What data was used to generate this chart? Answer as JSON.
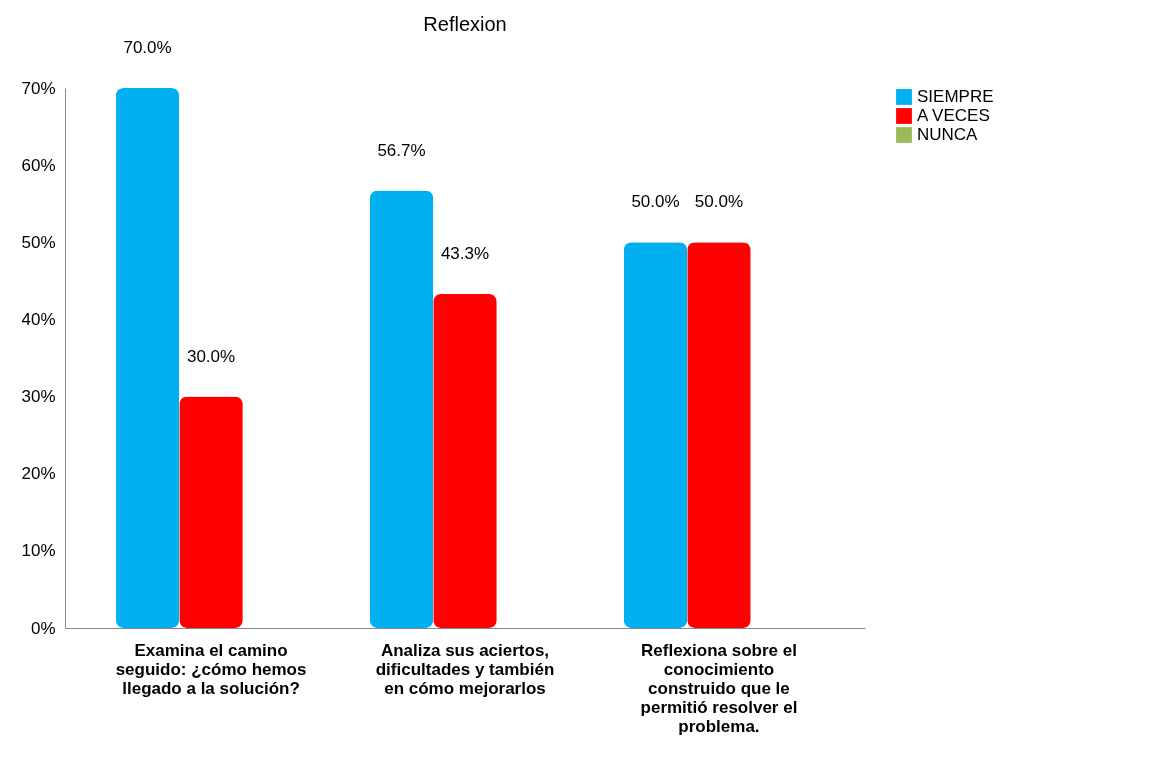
{
  "chart_data": {
    "type": "bar",
    "title": "Reflexion",
    "categories": [
      "Examina el camino seguido: ¿cómo hemos llegado a la solución?",
      "Analiza sus aciertos, dificultades y también en cómo mejorarlos",
      "Reflexiona sobre el conocimiento construido que le permitió resolver el problema."
    ],
    "series": [
      {
        "name": "SIEMPRE",
        "color": "#00b0f0",
        "values": [
          70.0,
          56.7,
          50.0
        ],
        "value_labels": [
          "70.0%",
          "56.7%",
          "50.0%"
        ]
      },
      {
        "name": "A VECES",
        "color": "#ff0000",
        "values": [
          30.0,
          43.3,
          50.0
        ],
        "value_labels": [
          "30.0%",
          "43.3%",
          "50.0%"
        ]
      },
      {
        "name": "NUNCA",
        "color": "#9bbb59",
        "values": [
          0,
          0,
          0
        ],
        "value_labels": [
          null,
          null,
          null
        ]
      }
    ],
    "ylim": [
      0,
      70
    ],
    "yticks": [
      {
        "value": 0,
        "label": "0%"
      },
      {
        "value": 10,
        "label": "10%"
      },
      {
        "value": 20,
        "label": "20%"
      },
      {
        "value": 30,
        "label": "30%"
      },
      {
        "value": 40,
        "label": "40%"
      },
      {
        "value": 50,
        "label": "50%"
      },
      {
        "value": 60,
        "label": "60%"
      },
      {
        "value": 70,
        "label": "70%"
      }
    ],
    "grid": false,
    "legend": "right"
  }
}
